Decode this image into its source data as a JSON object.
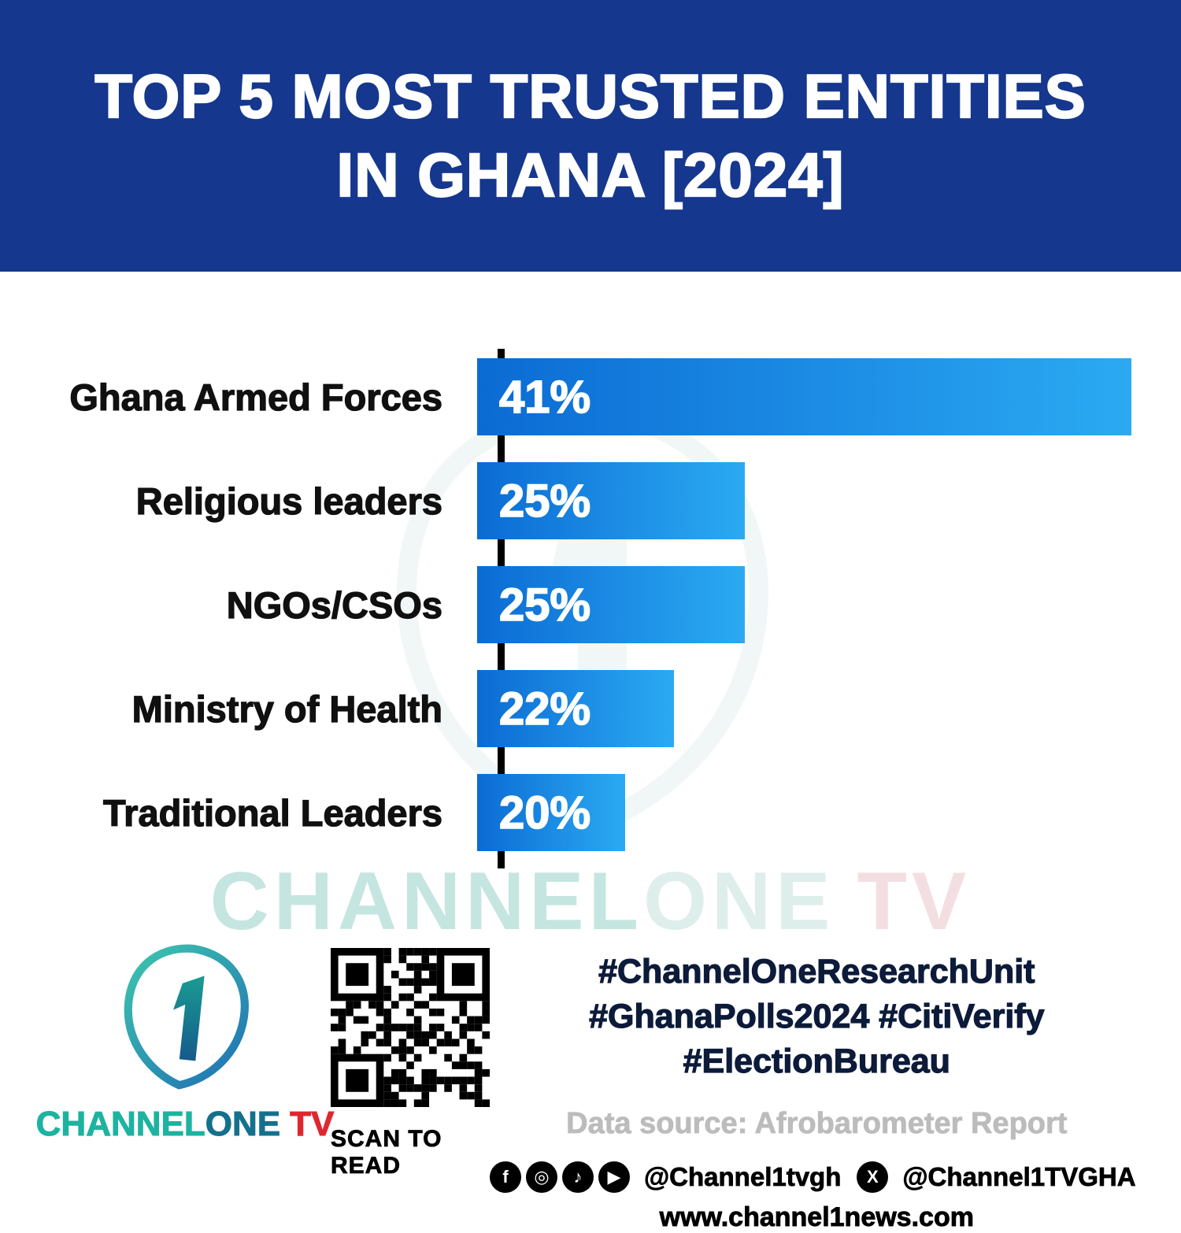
{
  "header": {
    "title_line1": "TOP 5 MOST TRUSTED ENTITIES",
    "title_line2": "IN GHANA [2024]",
    "bg_color": "#15378D"
  },
  "chart_data": {
    "type": "bar",
    "orientation": "horizontal",
    "title": "TOP 5 MOST TRUSTED ENTITIES IN GHANA [2024]",
    "categories": [
      "Ghana Armed Forces",
      "Religious leaders",
      "NGOs/CSOs",
      "Ministry of Health",
      "Traditional Leaders"
    ],
    "values": [
      41,
      25,
      25,
      22,
      20
    ],
    "value_labels": [
      "41%",
      "25%",
      "25%",
      "22%",
      "20%"
    ],
    "xlabel": "",
    "ylabel": "",
    "xlim": [
      0,
      41
    ],
    "grid": false,
    "legend": "none",
    "bars_drawn_to_scale": false,
    "display_widths_pct_of_plot": [
      93,
      38,
      38,
      28,
      21
    ],
    "bar_color_start": "#0B6BD4",
    "bar_color_end": "#2BAAF2",
    "axis_color": "#000000"
  },
  "watermark": {
    "part1": "CHANNEL",
    "part2": "ONE",
    "part3": "TV"
  },
  "footer": {
    "logo": {
      "brand_channel": "CHANNEL",
      "brand_one": "ONE",
      "brand_tv": "TV"
    },
    "qr_caption": "SCAN TO READ",
    "hashtags_line1": "#ChannelOneResearchUnit",
    "hashtags_line2": "#GhanaPolls2024 #CitiVerify",
    "hashtags_line3": "#ElectionBureau",
    "data_source": "Data source: Afrobarometer Report",
    "social_handle_1": "@Channel1tvgh",
    "social_handle_2": "@Channel1TVGHA",
    "website": "www.channel1news.com"
  },
  "icons": {
    "facebook": "f",
    "instagram": "◎",
    "tiktok": "♪",
    "youtube": "▶",
    "x": "X"
  }
}
